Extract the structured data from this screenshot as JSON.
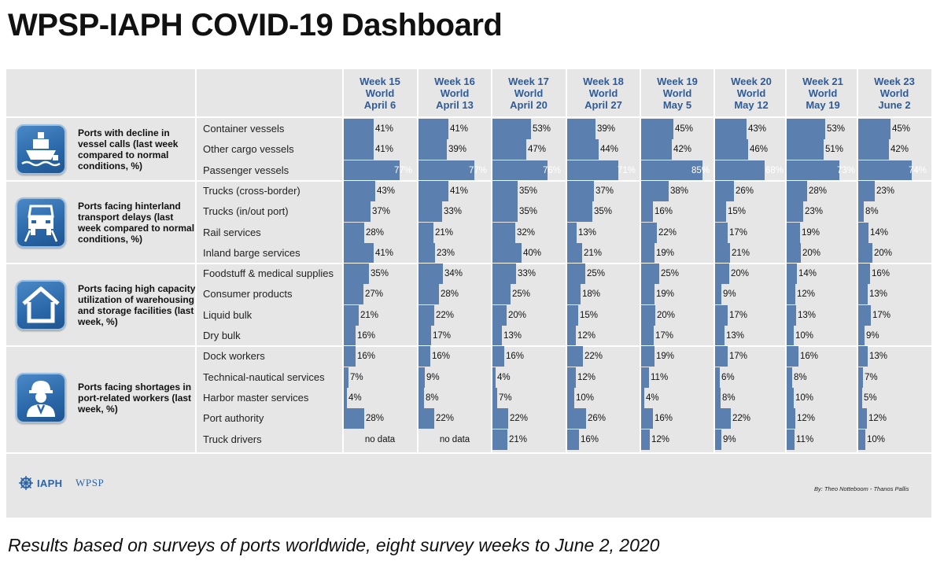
{
  "title": "WPSP-IAPH COVID-19 Dashboard",
  "subtitle": "Results based on surveys of ports worldwide, eight survey weeks to June 2, 2020",
  "credit": "By: Theo Notteboom - Thanos Pallis",
  "logos": {
    "iaph": "IAPH",
    "wpsp": "WPSP"
  },
  "colors": {
    "bar": "#5b80b0",
    "header": "#2e5b9a",
    "panel": "#e6e6e6",
    "icon": "#2a67a8"
  },
  "chart_data": {
    "type": "bar",
    "weeks": [
      {
        "week": "Week 15",
        "region": "World",
        "date": "April 6"
      },
      {
        "week": "Week 16",
        "region": "World",
        "date": "April 13"
      },
      {
        "week": "Week 17",
        "region": "World",
        "date": "April 20"
      },
      {
        "week": "Week 18",
        "region": "World",
        "date": "April 27"
      },
      {
        "week": "Week 19",
        "region": "World",
        "date": "May 5"
      },
      {
        "week": "Week 20",
        "region": "World",
        "date": "May 12"
      },
      {
        "week": "Week 21",
        "region": "World",
        "date": "May 19"
      },
      {
        "week": "Week 23",
        "region": "World",
        "date": "June 2"
      }
    ],
    "groups": [
      {
        "label": "Ports with decline in vessel calls (last week compared to normal conditions, %)",
        "icon": "ship-icon",
        "rows": [
          {
            "label": "Container vessels",
            "values": [
              41,
              41,
              53,
              39,
              45,
              43,
              53,
              45
            ]
          },
          {
            "label": "Other cargo vessels",
            "values": [
              41,
              39,
              47,
              44,
              42,
              46,
              51,
              42
            ]
          },
          {
            "label": "Passenger vessels",
            "values": [
              77,
              77,
              76,
              71,
              85,
              68,
              73,
              74
            ]
          }
        ]
      },
      {
        "label": "Ports facing hinterland transport delays (last week compared to normal conditions, %)",
        "icon": "truck-icon",
        "rows": [
          {
            "label": "Trucks (cross-border)",
            "values": [
              43,
              41,
              35,
              37,
              38,
              26,
              28,
              23
            ]
          },
          {
            "label": "Trucks (in/out port)",
            "values": [
              37,
              33,
              35,
              35,
              16,
              15,
              23,
              8
            ]
          },
          {
            "label": "Rail services",
            "values": [
              28,
              21,
              32,
              13,
              22,
              17,
              19,
              14
            ]
          },
          {
            "label": "Inland barge services",
            "values": [
              41,
              23,
              40,
              21,
              19,
              21,
              20,
              20
            ]
          }
        ]
      },
      {
        "label": "Ports facing high capacity utilization of warehousing and storage facilities (last week, %)",
        "icon": "warehouse-icon",
        "rows": [
          {
            "label": "Foodstuff & medical supplies",
            "values": [
              35,
              34,
              33,
              25,
              25,
              20,
              14,
              16
            ]
          },
          {
            "label": "Consumer products",
            "values": [
              27,
              28,
              25,
              18,
              19,
              9,
              12,
              13
            ]
          },
          {
            "label": "Liquid bulk",
            "values": [
              21,
              22,
              20,
              15,
              20,
              17,
              13,
              17
            ]
          },
          {
            "label": "Dry bulk",
            "values": [
              16,
              17,
              13,
              12,
              17,
              13,
              10,
              9
            ]
          }
        ]
      },
      {
        "label": "Ports facing shortages in port-related workers (last week, %)",
        "icon": "worker-icon",
        "rows": [
          {
            "label": "Dock workers",
            "values": [
              16,
              16,
              16,
              22,
              19,
              17,
              16,
              13
            ]
          },
          {
            "label": "Technical-nautical services",
            "values": [
              7,
              9,
              4,
              12,
              11,
              6,
              8,
              7
            ]
          },
          {
            "label": "Harbor master services",
            "values": [
              4,
              8,
              7,
              10,
              4,
              8,
              10,
              5
            ]
          },
          {
            "label": "Port authority",
            "values": [
              28,
              22,
              22,
              26,
              16,
              22,
              12,
              12
            ]
          },
          {
            "label": "Truck drivers",
            "values": [
              null,
              null,
              21,
              16,
              12,
              9,
              11,
              10
            ]
          }
        ]
      }
    ],
    "no_data_label": "no data",
    "unit": "%",
    "xlim": [
      0,
      100
    ]
  }
}
